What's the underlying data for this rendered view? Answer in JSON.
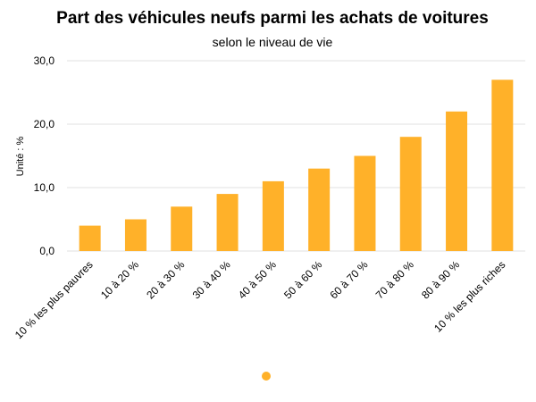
{
  "chart_data": {
    "type": "bar",
    "title": "Part des véhicules neufs parmi les achats de voitures",
    "subtitle": "selon le niveau de vie",
    "ylabel": "Unité : %",
    "xlabel": "",
    "ylim": [
      0,
      30
    ],
    "yticks": [
      0,
      10,
      20,
      30
    ],
    "ytick_labels": [
      "0,0",
      "10,0",
      "20,0",
      "30,0"
    ],
    "grid": true,
    "legend": "bottom",
    "categories": [
      "10 % les plus pauvres",
      "10 à 20 %",
      "20 à 30 %",
      "30 à 40 %",
      "40 à 50 %",
      "50 à 60 %",
      "60 à 70 %",
      "70 à 80 %",
      "80 à 90 %",
      "10 % les plus riches"
    ],
    "series": [
      {
        "values": [
          4,
          5,
          7,
          9,
          11,
          13,
          15,
          18,
          22,
          27
        ],
        "color": "#FFB129"
      }
    ]
  }
}
